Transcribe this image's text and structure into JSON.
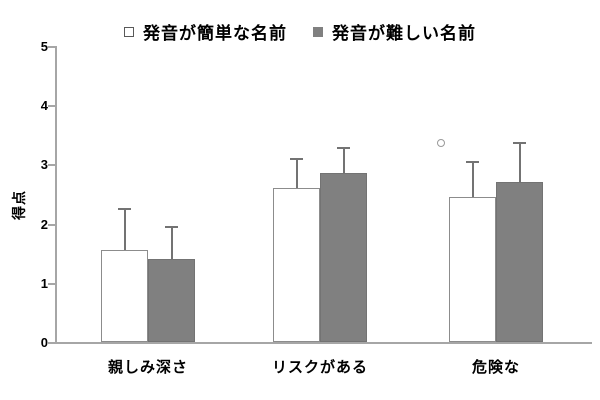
{
  "legend": {
    "items": [
      {
        "label": "発音が簡単な名前",
        "swatch": "open-square"
      },
      {
        "label": "発音が難しい名前",
        "swatch": "filled-square"
      }
    ]
  },
  "chart_data": {
    "type": "bar",
    "title": "",
    "categories": [
      "親しみ深さ",
      "リスクがある",
      "危険な"
    ],
    "series": [
      {
        "name": "発音が簡単な名前",
        "values": [
          1.55,
          2.6,
          2.45
        ],
        "errors_upper": [
          0.7,
          0.49,
          0.59
        ],
        "fill": "#ffffff",
        "border": "#8c8c8c"
      },
      {
        "name": "発音が難しい名前",
        "values": [
          1.4,
          2.85,
          2.7
        ],
        "errors_upper": [
          0.54,
          0.43,
          0.66
        ],
        "fill": "#808080",
        "border": "#737373"
      }
    ],
    "xlabel": "",
    "ylabel": "得点",
    "ylim": [
      0,
      5
    ],
    "yticks": [
      0,
      1,
      2,
      3,
      4,
      5
    ],
    "grid": false,
    "legend_position": "top",
    "error_bars": "upper-only"
  },
  "annotations": [
    {
      "type": "open-circle",
      "note": "small stray circle above left bar of 危険な group"
    }
  ],
  "colors": {
    "axis": "#a6a6a6",
    "error_bar": "#737373",
    "bar_gray": "#808080",
    "text": "#000000"
  }
}
